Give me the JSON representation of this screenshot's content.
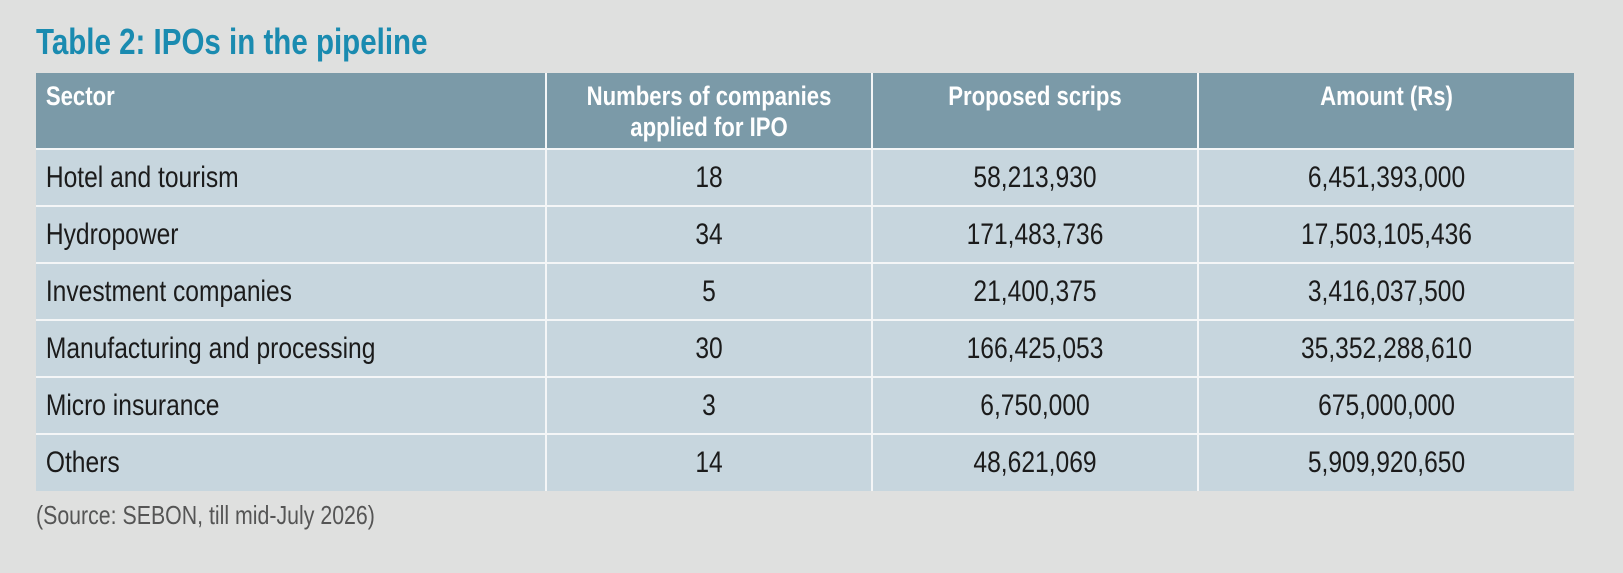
{
  "title": "Table 2: IPOs in the pipeline",
  "table": {
    "headers": [
      "Sector",
      "Numbers of companies applied for IPO",
      "Proposed scrips",
      "Amount (Rs)"
    ],
    "header_lines": [
      [
        "Sector"
      ],
      [
        "Numbers of companies",
        "applied for IPO"
      ],
      [
        "Proposed scrips"
      ],
      [
        "Amount (Rs)"
      ]
    ],
    "rows": [
      [
        "Hotel and tourism",
        "18",
        "58,213,930",
        "6,451,393,000"
      ],
      [
        "Hydropower",
        "34",
        "171,483,736",
        "17,503,105,436"
      ],
      [
        "Investment companies",
        "5",
        "21,400,375",
        "3,416,037,500"
      ],
      [
        "Manufacturing and processing",
        "30",
        "166,425,053",
        "35,352,288,610"
      ],
      [
        "Micro insurance",
        "3",
        "6,750,000",
        "675,000,000"
      ],
      [
        "Others",
        "14",
        "48,621,069",
        "5,909,920,650"
      ]
    ]
  },
  "source": "(Source: SEBON, till mid-July 2026)",
  "colors": {
    "title": "#1a8bb0",
    "header_bg": "#7b9aa8",
    "row_bg": "#c7d6de",
    "page_bg": "#dfe0df"
  }
}
